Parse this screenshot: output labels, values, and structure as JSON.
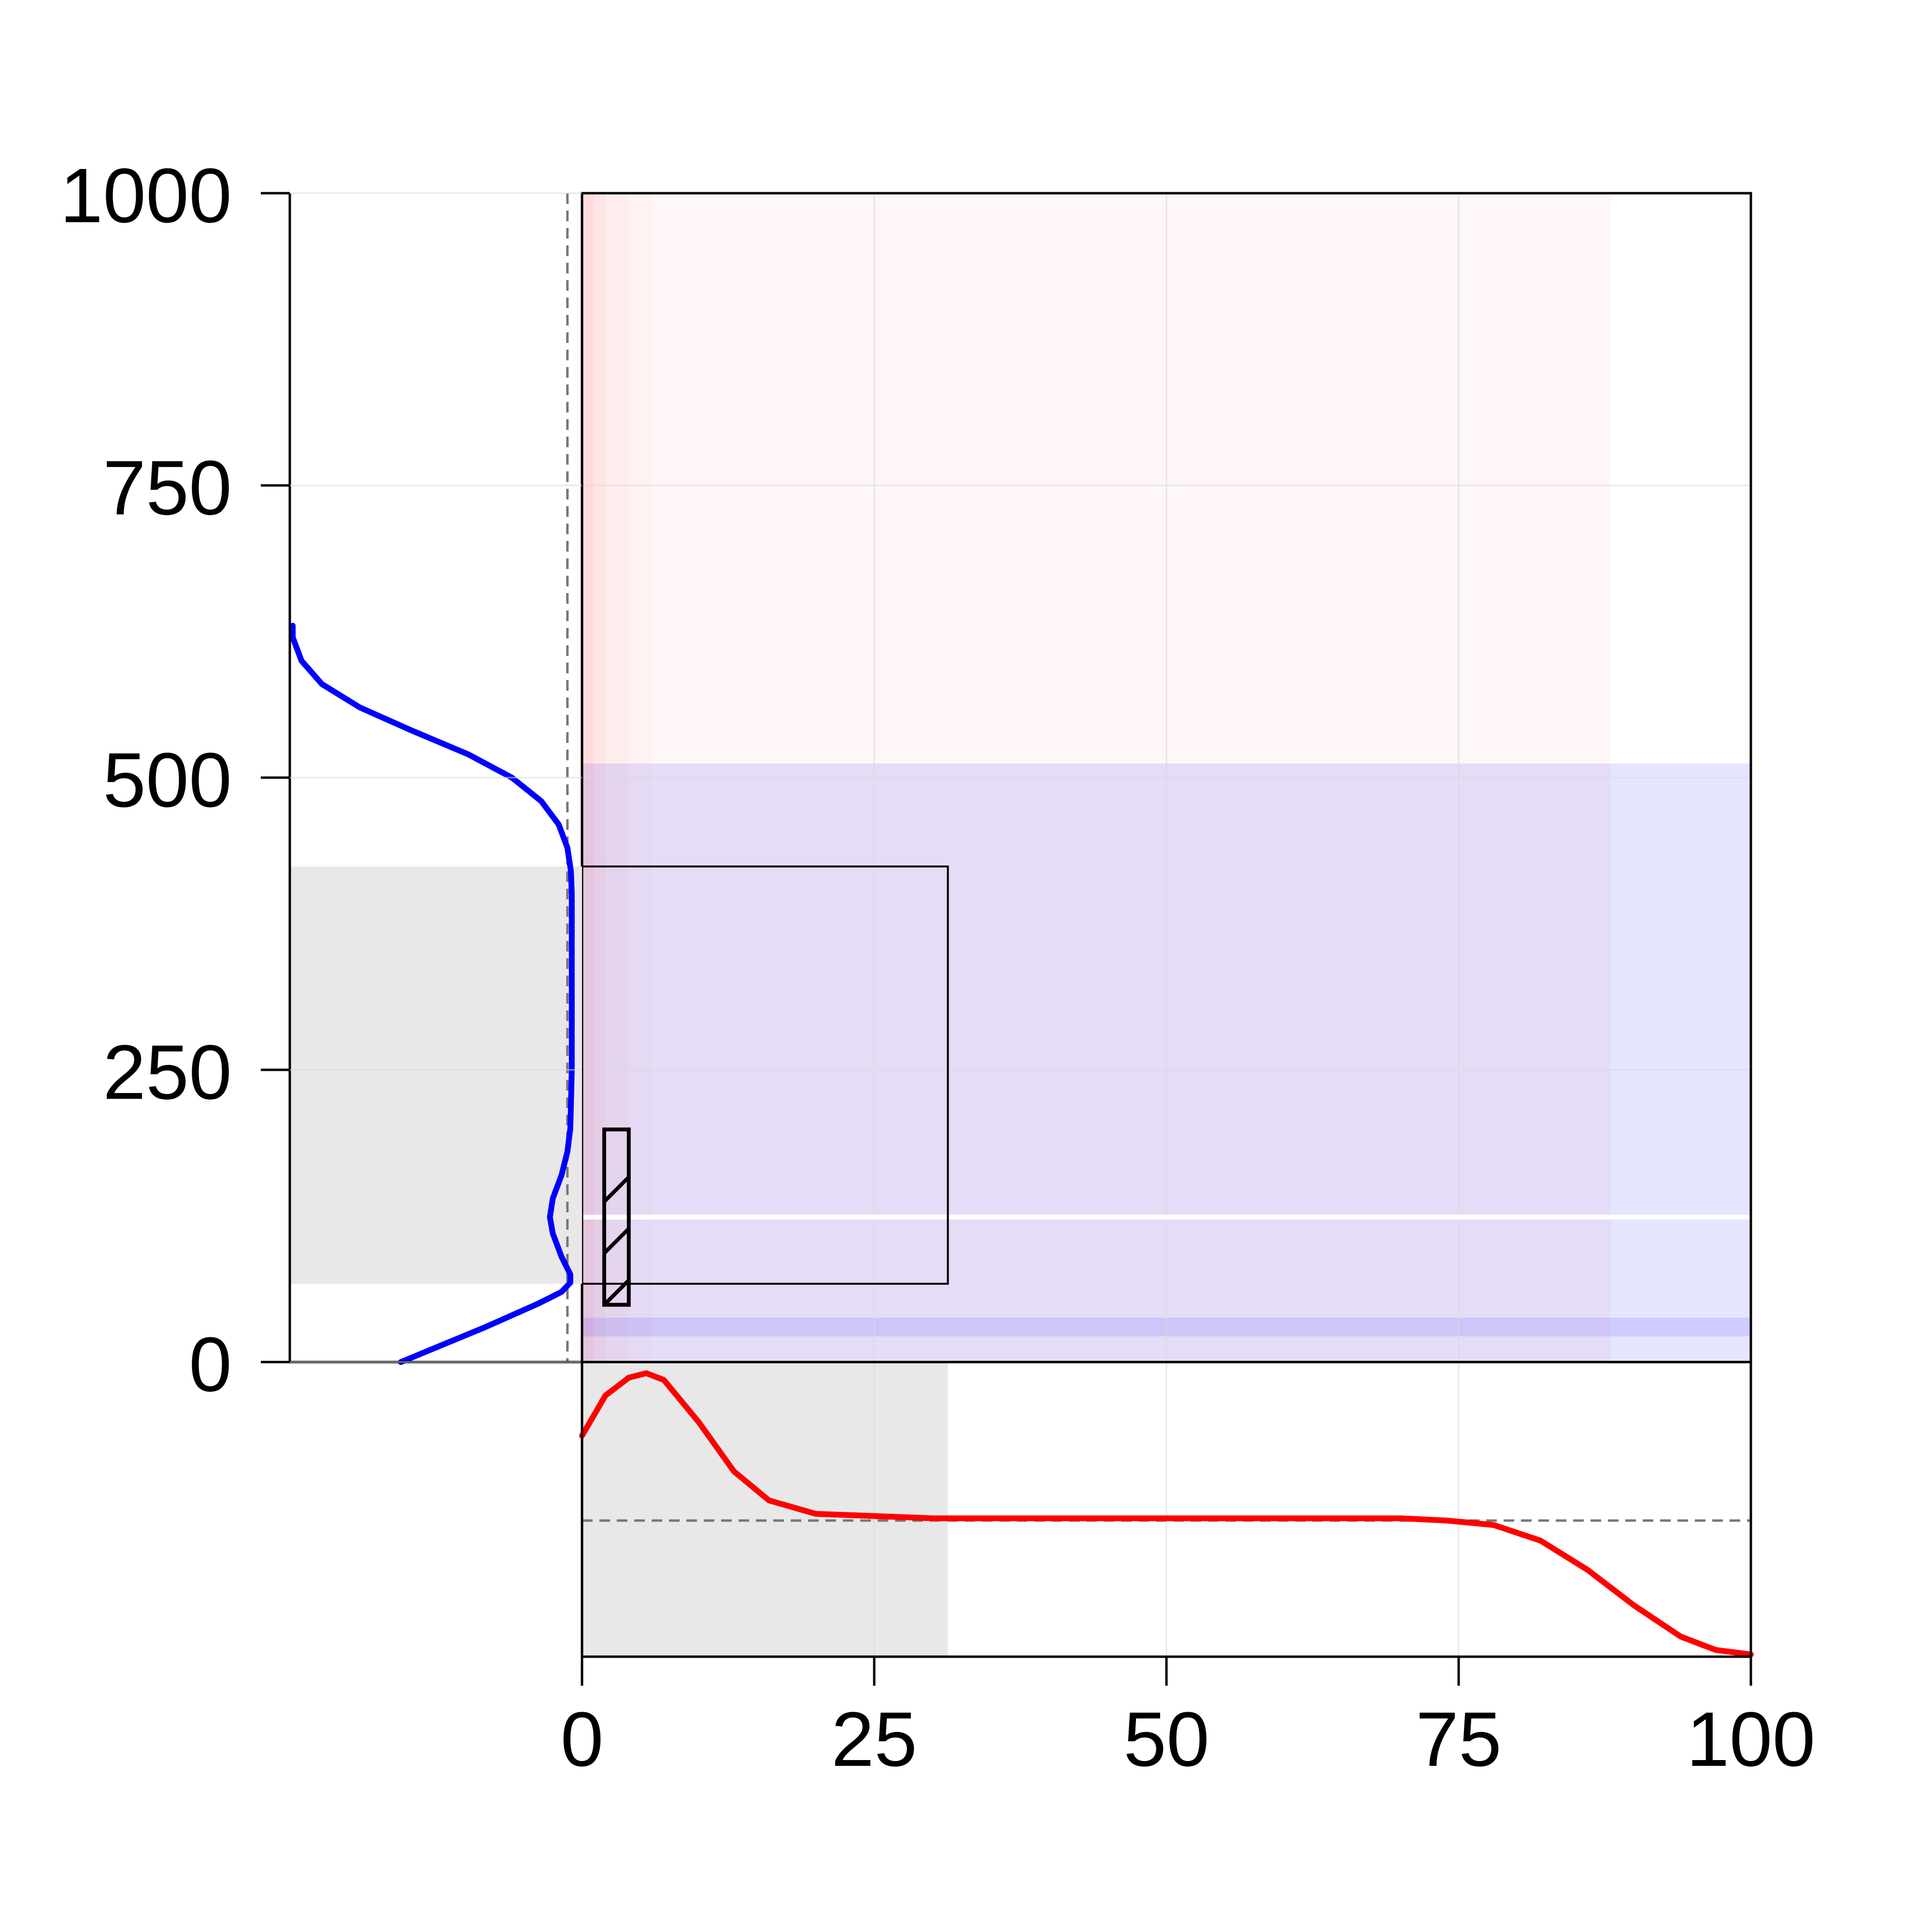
{
  "chart_data": {
    "type": "line",
    "title": "",
    "xlabel": "",
    "ylabel": "",
    "xlim": [
      0,
      100
    ],
    "ylim": [
      0,
      1000
    ],
    "x_ticks": [
      "0",
      "25",
      "50",
      "75",
      "100"
    ],
    "y_ticks": [
      "0",
      "250",
      "500",
      "750",
      "1000"
    ],
    "grid": true,
    "colors": {
      "x_density": "#ff0000",
      "y_density": "#0000ff",
      "red_band": "#ff0000",
      "blue_band": "#0000ff",
      "gray_region": "#e8e8e8",
      "reference_line": "#777777",
      "white_line": "#ffffff"
    },
    "main_panel": {
      "red_gradient": {
        "description_units": "x",
        "x_from": 0,
        "x_to": 88,
        "steps": [
          {
            "x0": 0,
            "x1": 1,
            "opacity": 0.14
          },
          {
            "x0": 1,
            "x1": 2,
            "opacity": 0.1
          },
          {
            "x0": 2,
            "x1": 4,
            "opacity": 0.07
          },
          {
            "x0": 4,
            "x1": 6,
            "opacity": 0.05
          },
          {
            "x0": 6,
            "x1": 88,
            "opacity": 0.03
          }
        ]
      },
      "blue_band": {
        "y0": 0,
        "y1": 512,
        "x0": 0,
        "x1": 100,
        "opacity": 0.1
      },
      "blue_strip": {
        "y0": 22,
        "y1": 38,
        "opacity": 0.1
      },
      "white_line_y": 124,
      "outer_rect": {
        "x0": 0,
        "x1": 31.3,
        "y0": 67,
        "y1": 424
      },
      "hatched_rect": {
        "x0": 1.9,
        "x1": 4,
        "y0": 49,
        "y1": 199
      }
    },
    "bottom_panel": {
      "gray_x": [
        0,
        31.3
      ],
      "reference_level": 0.34,
      "series": [
        {
          "x": [
            0,
            2,
            4,
            5.5,
            7,
            10,
            13,
            16,
            20,
            25,
            30,
            40,
            50,
            60,
            70,
            74,
            78,
            82,
            86,
            90,
            94,
            97,
            100
          ],
          "values": [
            0.72,
            0.9,
            0.98,
            1.0,
            0.97,
            0.78,
            0.56,
            0.43,
            0.37,
            0.36,
            0.35,
            0.35,
            0.35,
            0.35,
            0.35,
            0.34,
            0.32,
            0.25,
            0.12,
            -0.04,
            -0.18,
            -0.24,
            -0.26
          ]
        }
      ]
    },
    "left_panel": {
      "gray_y": [
        67,
        424
      ],
      "reference_level": 0.95,
      "series": [
        {
          "y": [
            0,
            30,
            50,
            60,
            68,
            75,
            90,
            110,
            124,
            140,
            160,
            180,
            200,
            250,
            300,
            350,
            400,
            420,
            440,
            460,
            480,
            500,
            520,
            540,
            560,
            580,
            600,
            620,
            630
          ],
          "values": [
            0.38,
            0.67,
            0.85,
            0.93,
            0.96,
            0.96,
            0.93,
            0.9,
            0.89,
            0.9,
            0.93,
            0.95,
            0.96,
            0.965,
            0.965,
            0.965,
            0.965,
            0.962,
            0.95,
            0.92,
            0.86,
            0.76,
            0.61,
            0.42,
            0.24,
            0.11,
            0.04,
            0.01,
            0.01
          ]
        }
      ]
    }
  }
}
